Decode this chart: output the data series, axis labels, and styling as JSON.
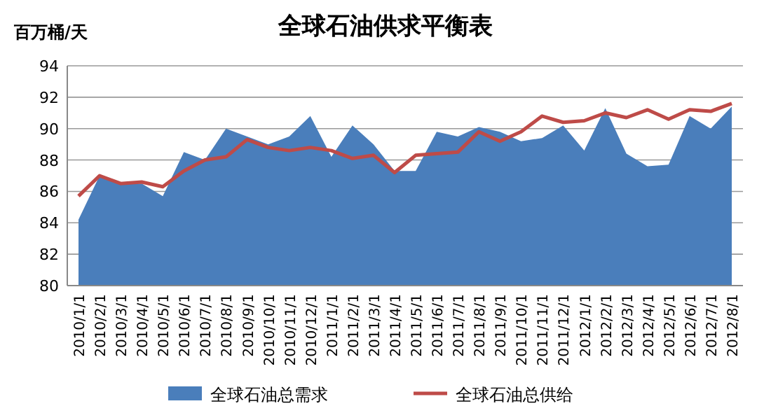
{
  "chart_data": {
    "type": "area",
    "title": "全球石油供求平衡表",
    "ylabel": "百万桶/天",
    "categories": [
      "2010/1/1",
      "2010/2/1",
      "2010/3/1",
      "2010/4/1",
      "2010/5/1",
      "2010/6/1",
      "2010/7/1",
      "2010/8/1",
      "2010/9/1",
      "2010/10/1",
      "2010/11/1",
      "2010/12/1",
      "2011/1/1",
      "2011/2/1",
      "2011/3/1",
      "2011/4/1",
      "2011/5/1",
      "2011/6/1",
      "2011/7/1",
      "2011/8/1",
      "2011/9/1",
      "2011/10/1",
      "2011/11/1",
      "2011/12/1",
      "2012/1/1",
      "2012/2/1",
      "2012/3/1",
      "2012/4/1",
      "2012/5/1",
      "2012/6/1",
      "2012/7/1",
      "2012/8/1"
    ],
    "series": [
      {
        "name": "全球石油总需求",
        "type": "area",
        "color": "#4a7ebb",
        "values": [
          84.2,
          87.0,
          86.5,
          86.5,
          85.7,
          88.5,
          88.0,
          90.0,
          89.5,
          89.0,
          89.5,
          90.8,
          88.2,
          90.2,
          89.0,
          87.3,
          87.3,
          89.8,
          89.5,
          90.1,
          89.8,
          89.2,
          89.4,
          90.2,
          88.6,
          91.3,
          88.4,
          87.6,
          87.7,
          90.8,
          90.0,
          91.4
        ]
      },
      {
        "name": "全球石油总供给",
        "type": "line",
        "color": "#be4b48",
        "values": [
          85.7,
          87.0,
          86.5,
          86.6,
          86.3,
          87.3,
          88.0,
          88.2,
          89.3,
          88.8,
          88.6,
          88.8,
          88.6,
          88.1,
          88.3,
          87.2,
          88.3,
          88.4,
          88.5,
          89.8,
          89.2,
          89.8,
          90.8,
          90.4,
          90.5,
          91.0,
          90.7,
          91.2,
          90.6,
          91.2,
          91.1,
          91.6
        ]
      }
    ],
    "ylim": [
      80,
      94
    ],
    "yticks": [
      80,
      82,
      84,
      86,
      88,
      90,
      92,
      94
    ],
    "grid": "y",
    "legend": "bottom"
  }
}
